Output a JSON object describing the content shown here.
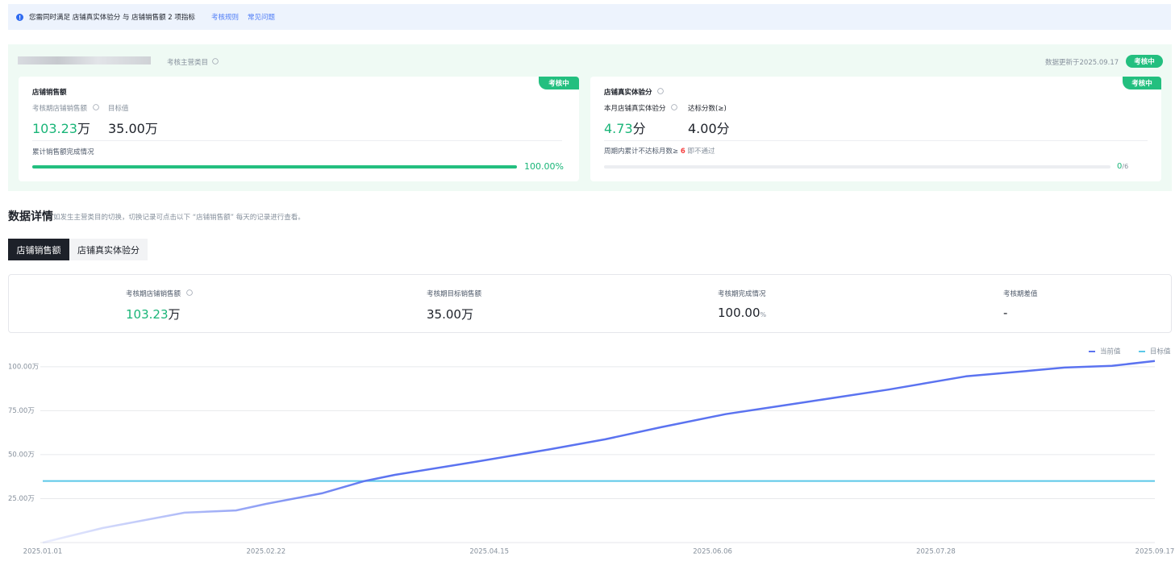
{
  "notice": {
    "text": "您需同时满足 店铺真实体验分 与 店铺销售额 2 项指标",
    "links": [
      "考核规则",
      "常见问题"
    ]
  },
  "header": {
    "category_label": "考核主营类目",
    "updated": "数据更新于2025.09.17",
    "status": "考核中"
  },
  "sales_card": {
    "title": "店铺销售额",
    "status": "考核中",
    "metrics": [
      {
        "label": "考核期店铺销售额",
        "value": "103.23",
        "unit": "万"
      },
      {
        "label": "目标值",
        "value": "35.00",
        "unit": "万"
      }
    ],
    "progress_label": "累计销售额完成情况",
    "progress": {
      "value": 100,
      "label": "100.00%"
    }
  },
  "score_card": {
    "title": "店铺真实体验分",
    "status": "考核中",
    "metrics": [
      {
        "label": "本月店铺真实体验分",
        "value": "4.73",
        "unit": "分"
      },
      {
        "label": "达标分数(≥)",
        "value": "4.00",
        "unit": "分"
      }
    ],
    "note": {
      "prefix": "周期内累计不达标月数≥",
      "count": 6,
      "suffix": "即不通过"
    },
    "progress": {
      "current": 0,
      "total": {
        "value": 6,
        "label": "/6"
      }
    }
  },
  "details": {
    "title": "数据详情",
    "subtitle": "如发生主营类目的切换，切换记录可点击以下 “店铺销售额” 每天的记录进行查看。"
  },
  "tabs": {
    "items": [
      "店铺销售额",
      "店铺真实体验分"
    ],
    "active": 0
  },
  "summary": [
    {
      "label": "考核期店铺销售额",
      "value": "103.23",
      "unit": "万"
    },
    {
      "label": "考核期目标销售额",
      "value": "35.00",
      "unit": "万"
    },
    {
      "label": "考核期完成情况",
      "value": "100.00",
      "unit": "%"
    },
    {
      "label": "考核期差值",
      "value": "-"
    }
  ],
  "chart_data": {
    "type": "line",
    "x": [
      "2025.01.01",
      "2025.01.15",
      "2025.02.03",
      "2025.02.15",
      "2025.02.22",
      "2025.03.07",
      "2025.03.17",
      "2025.03.24",
      "2025.04.12",
      "2025.04.29",
      "2025.05.12",
      "2025.05.25",
      "2025.06.09",
      "2025.06.28",
      "2025.07.17",
      "2025.08.04",
      "2025.08.19",
      "2025.08.27",
      "2025.09.07",
      "2025.09.17"
    ],
    "series": [
      {
        "name": "当前值",
        "color": "#5b73f0",
        "values": [
          0,
          8.3,
          17,
          18.3,
          22,
          28,
          35,
          38.5,
          46,
          53,
          58.7,
          65.6,
          73,
          80,
          87,
          94.5,
          97.7,
          99.5,
          100.5,
          103.23
        ]
      },
      {
        "name": "目标值",
        "color": "#5ac8e8",
        "values": [
          35,
          35,
          35,
          35,
          35,
          35,
          35,
          35,
          35,
          35,
          35,
          35,
          35,
          35,
          35,
          35,
          35,
          35,
          35,
          35
        ]
      }
    ],
    "xlim": [
      "2025.01.01",
      "2025.09.17"
    ],
    "xticks": [
      "2025.01.01",
      "2025.02.22",
      "2025.04.15",
      "2025.06.06",
      "2025.07.28",
      "2025.09.17"
    ],
    "ylim": [
      0,
      110
    ],
    "yticks": [
      {
        "value": 25,
        "label": "25.00万"
      },
      {
        "value": 50,
        "label": "50.00万"
      },
      {
        "value": 75,
        "label": "75.00万"
      },
      {
        "value": 100,
        "label": "100.00万"
      }
    ],
    "grid": true,
    "legend": "top-right"
  }
}
